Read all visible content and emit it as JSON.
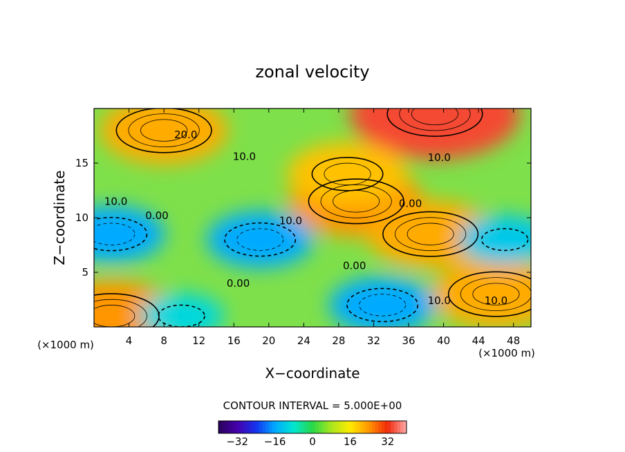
{
  "chart_data": {
    "type": "heatmap",
    "title": "zonal velocity",
    "xlabel": "X−coordinate",
    "ylabel": "Z−coordinate",
    "x_unit_left": "(×1000 m)",
    "x_unit_right": "(×1000 m)",
    "xlim": [
      0,
      50
    ],
    "ylim": [
      0,
      20
    ],
    "x_ticks": [
      4,
      8,
      12,
      16,
      20,
      24,
      28,
      32,
      36,
      40,
      44,
      48
    ],
    "y_ticks": [
      5,
      10,
      15
    ],
    "contour_interval_label": "CONTOUR INTERVAL = 5.000E+00",
    "colorbar": {
      "range": [
        -40,
        40
      ],
      "ticks": [
        -32,
        -16,
        0,
        16,
        32
      ],
      "tick_labels": [
        "−32",
        "−16",
        "0",
        "16",
        "32"
      ]
    },
    "contour_labels": [
      {
        "text": "20.0",
        "x": 10.5,
        "y": 17.6
      },
      {
        "text": "10.0",
        "x": 17.2,
        "y": 15.6
      },
      {
        "text": "10.0",
        "x": 39.5,
        "y": 15.5
      },
      {
        "text": "10.0",
        "x": 2.5,
        "y": 11.5
      },
      {
        "text": "0.00",
        "x": 7.2,
        "y": 10.2
      },
      {
        "text": "10.0",
        "x": 22.5,
        "y": 9.7
      },
      {
        "text": "0.00",
        "x": 36.2,
        "y": 11.3
      },
      {
        "text": "0.00",
        "x": 29.8,
        "y": 5.6
      },
      {
        "text": "0.00",
        "x": 16.5,
        "y": 4.0
      },
      {
        "text": "10.0",
        "x": 39.5,
        "y": 2.4
      },
      {
        "text": "10.0",
        "x": 46.0,
        "y": 2.4
      }
    ],
    "features": [
      {
        "kind": "max",
        "x": 39,
        "y": 19.5,
        "value": 34
      },
      {
        "kind": "max",
        "x": 8,
        "y": 18,
        "value": 22
      },
      {
        "kind": "max",
        "x": 30,
        "y": 11.5,
        "value": 24
      },
      {
        "kind": "max",
        "x": 29,
        "y": 14,
        "value": 20
      },
      {
        "kind": "max",
        "x": 38.5,
        "y": 8.5,
        "value": 22
      },
      {
        "kind": "max",
        "x": 46,
        "y": 3,
        "value": 22
      },
      {
        "kind": "max",
        "x": 2,
        "y": 1,
        "value": 24
      },
      {
        "kind": "min",
        "x": 2,
        "y": 8.5,
        "value": -16
      },
      {
        "kind": "min",
        "x": 19,
        "y": 8,
        "value": -16
      },
      {
        "kind": "min",
        "x": 33,
        "y": 2,
        "value": -16
      },
      {
        "kind": "min",
        "x": 10,
        "y": 1,
        "value": -10
      },
      {
        "kind": "min",
        "x": 47,
        "y": 8,
        "value": -12
      }
    ],
    "grid": false
  }
}
